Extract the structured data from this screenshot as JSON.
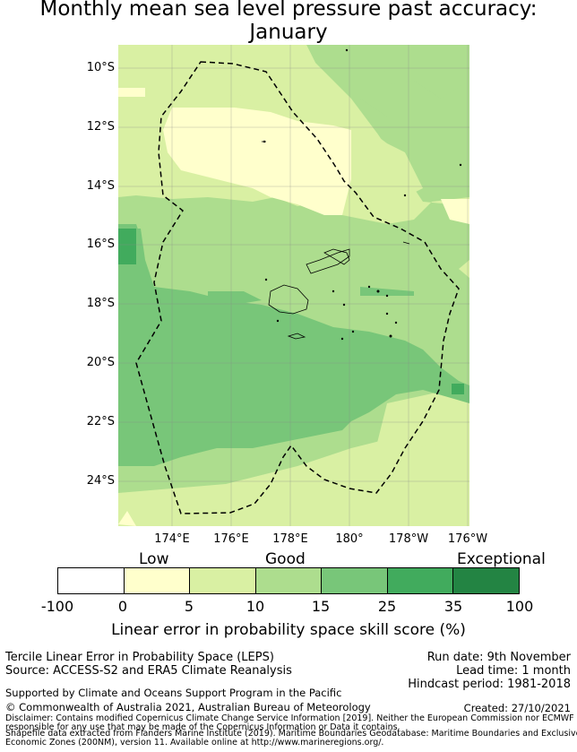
{
  "title": {
    "line1": "Monthly mean sea level pressure past accuracy:",
    "line2": "January"
  },
  "map": {
    "lat_labels": [
      "10°S",
      "12°S",
      "14°S",
      "16°S",
      "18°S",
      "20°S",
      "22°S",
      "24°S"
    ],
    "lon_labels": [
      "174°E",
      "176°E",
      "178°E",
      "180°",
      "178°W",
      "176°W"
    ],
    "boundary_line": "dashed",
    "region_colors": {
      "score_0_5": "#ffffcc",
      "score_5_10": "#d9f0a3",
      "score_10_15": "#addd8e",
      "score_15_25": "#78c679",
      "score_25_35": "#41ab5d",
      "score_35_100": "#238443"
    }
  },
  "colorbar": {
    "categories": [
      "Low",
      "Good",
      "Exceptional"
    ],
    "ticks": [
      "-100",
      "0",
      "5",
      "10",
      "15",
      "25",
      "35",
      "100"
    ],
    "colors": [
      "#ffffff",
      "#ffffcc",
      "#d9f0a3",
      "#addd8e",
      "#78c679",
      "#41ab5d",
      "#238443"
    ],
    "label": "Linear error in probability space skill score (%)"
  },
  "footer": {
    "left1": "Tercile Linear Error in Probability Space (LEPS)",
    "left2": "Source: ACCESS-S2 and ERA5 Climate Reanalysis",
    "right1": "Run date: 9th November",
    "right2": "Lead time: 1 month",
    "right3": "Hindcast period: 1981-2018",
    "support": "Supported by Climate and Oceans Support Program in the Pacific",
    "copyright": "© Commonwealth of Australia 2021, Australian Bureau of Meteorology",
    "created": "Created: 27/10/2021",
    "disclaimer1": "Disclaimer: Contains modified Copernicus Climate Change Service Information [2019]. Neither the European Commission nor ECMWF is",
    "disclaimer2": "responsible for any use that may be made of the Copernicus Information or Data it contains.",
    "shapefile1": "Shapefile data extracted from Flanders Marine Institute (2019). Maritime Boundaries Geodatabase: Maritime Boundaries and Exclusive",
    "shapefile2": "Economic Zones (200NM), version 11. Available online at http://www.marineregions.org/."
  }
}
